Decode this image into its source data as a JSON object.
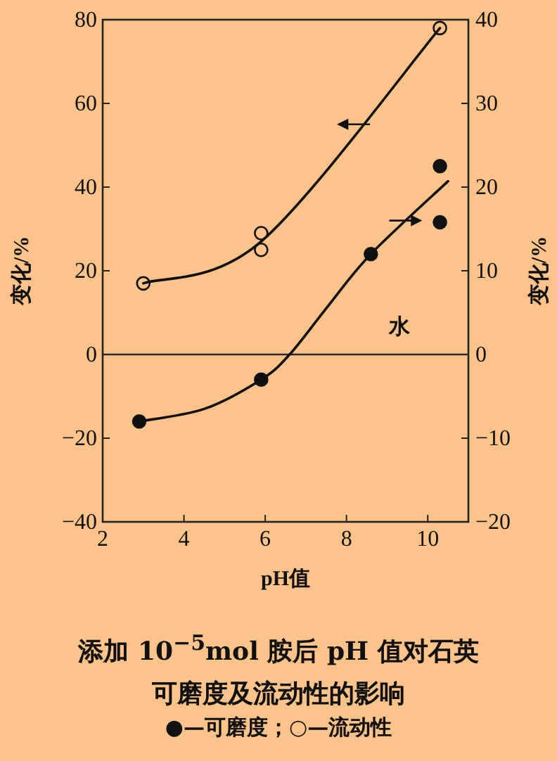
{
  "chart_data": {
    "type": "line",
    "title": "添加 10$^{−5}$mol 胺后 pH 值对石英可磨度及流动性的影响",
    "xlabel": "pH值",
    "ylabel": "变化/%",
    "y2label": "变化/%",
    "xlim": [
      2,
      11
    ],
    "xticks": [
      2,
      4,
      6,
      8,
      10
    ],
    "ylim": [
      -40,
      80
    ],
    "yticks": [
      -40,
      -20,
      0,
      20,
      40,
      60,
      80
    ],
    "y2lim": [
      -20,
      40
    ],
    "y2ticks": [
      -20,
      -10,
      0,
      10,
      20,
      30,
      40
    ],
    "grid": false,
    "ref_lines": [
      {
        "axis": "y",
        "value": 0,
        "color": "#2a2a2a"
      }
    ],
    "annotations": [
      "水",
      "●—可磨度；○—流动性"
    ],
    "series": [
      {
        "type": "scatter",
        "axis": "y2",
        "marker": "circle",
        "color": "#111111",
        "x": [
          2.9,
          5.9,
          8.6,
          10.3,
          10.3
        ],
        "values": [
          -8,
          -3,
          12,
          22.5,
          15.8
        ]
      },
      {
        "type": "line",
        "axis": "y2",
        "marker": "none",
        "color": "#111111",
        "x": [
          2.9,
          4.5,
          5.9,
          6.6,
          7.5,
          8.6,
          10.5
        ],
        "values": [
          -8,
          -6.5,
          -3,
          0,
          5.5,
          12,
          20.7
        ]
      },
      {
        "type": "scatter",
        "marker": "circle",
        "color": "#fcc48b",
        "x": [
          3.0,
          5.9,
          5.9,
          10.3
        ],
        "values": [
          17,
          29,
          25,
          78
        ]
      },
      {
        "type": "line",
        "marker": "none",
        "color": "#111111",
        "x": [
          3.0,
          5.9,
          10.3
        ],
        "values": [
          17,
          27,
          78
        ]
      }
    ]
  }
}
